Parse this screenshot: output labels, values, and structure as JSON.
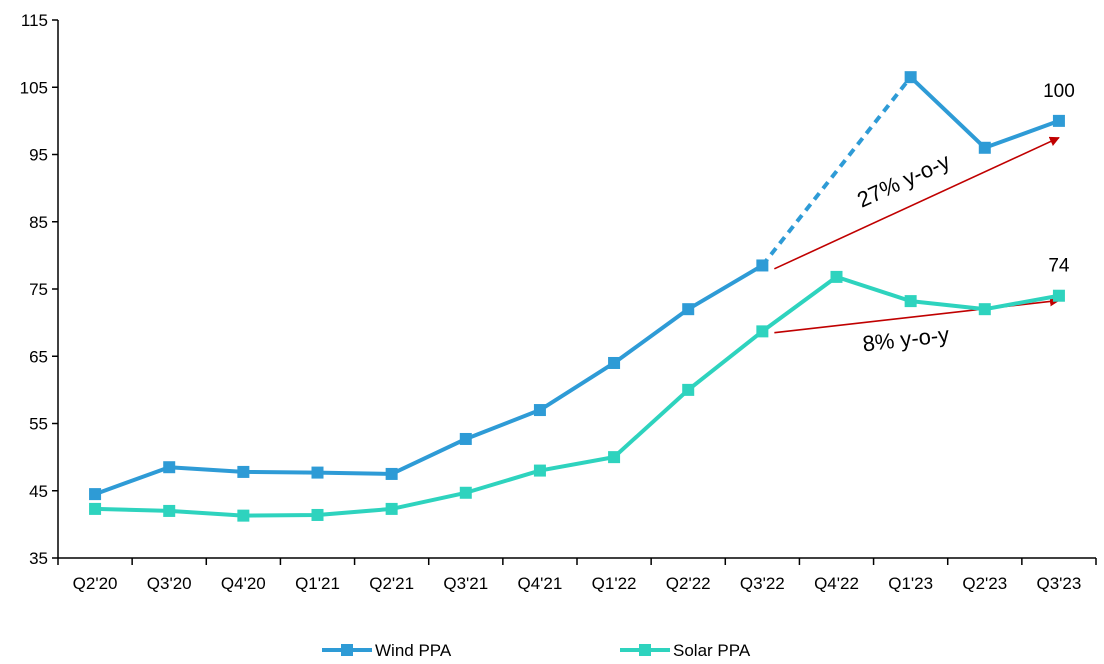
{
  "chart_data": {
    "type": "line",
    "title": "",
    "xlabel": "",
    "ylabel": "",
    "categories": [
      "Q2'20",
      "Q3'20",
      "Q4'20",
      "Q1'21",
      "Q2'21",
      "Q3'21",
      "Q4'21",
      "Q1'22",
      "Q2'22",
      "Q3'22",
      "Q4'22",
      "Q1'23",
      "Q2'23",
      "Q3'23"
    ],
    "ylim": [
      35,
      115
    ],
    "yticks": [
      35,
      45,
      55,
      65,
      75,
      85,
      95,
      105,
      115
    ],
    "grid": false,
    "legend_position": "bottom",
    "series": [
      {
        "name": "Wind PPA",
        "color": "#2E9BD6",
        "values": [
          44.5,
          48.5,
          47.8,
          47.7,
          47.5,
          52.7,
          57,
          64,
          72,
          78.5,
          null,
          106.5,
          96,
          100
        ],
        "dashed_gap": {
          "from": "Q3'22",
          "to": "Q1'23"
        },
        "end_label": "100"
      },
      {
        "name": "Solar PPA",
        "color": "#2ED3BE",
        "values": [
          42.3,
          42,
          41.3,
          41.4,
          42.3,
          44.7,
          48,
          50,
          60,
          68.7,
          76.8,
          73.2,
          72,
          74
        ],
        "end_label": "74"
      }
    ],
    "annotations": [
      {
        "text": "27% y-o-y",
        "arrow_color": "#C00000",
        "from": {
          "x": "Q3'22",
          "y": 78
        },
        "to": {
          "x": "Q3'23",
          "y": 97.5
        }
      },
      {
        "text": "8% y-o-y",
        "arrow_color": "#C00000",
        "from": {
          "x": "Q3'22",
          "y": 68.5
        },
        "to": {
          "x": "Q3'23",
          "y": 73.3
        }
      }
    ]
  }
}
